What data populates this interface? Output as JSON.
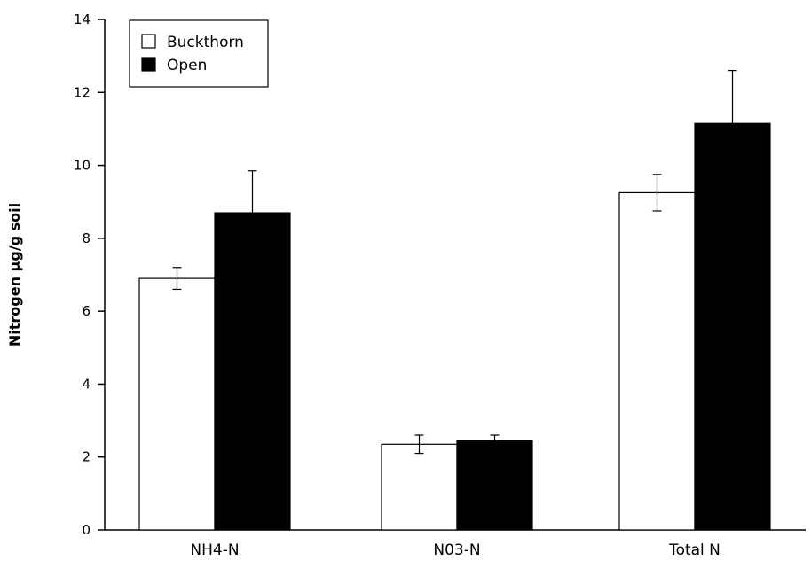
{
  "chart_data": {
    "type": "bar",
    "title": "",
    "xlabel": "",
    "ylabel": "Nitrogen µg/g soil",
    "ylim": [
      0,
      14
    ],
    "yticks": [
      0,
      2,
      4,
      6,
      8,
      10,
      12,
      14
    ],
    "categories": [
      "NH4-N",
      "N03-N",
      "Total N"
    ],
    "series": [
      {
        "name": "Buckthorn",
        "color": "#ffffff",
        "values": [
          6.9,
          2.35,
          9.25
        ],
        "error": [
          0.3,
          0.25,
          0.5
        ]
      },
      {
        "name": "Open",
        "color": "#000000",
        "values": [
          8.7,
          2.45,
          11.15
        ],
        "error": [
          1.15,
          0.15,
          1.45
        ]
      }
    ],
    "legend_position": "top-left",
    "grid": false
  }
}
